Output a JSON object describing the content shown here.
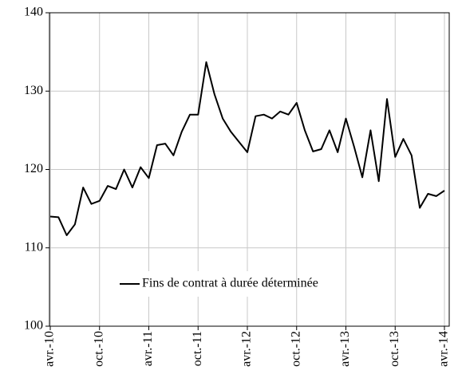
{
  "chart_data": {
    "type": "line",
    "categories": [
      "avr.-10",
      null,
      null,
      null,
      null,
      null,
      "oct.-10",
      null,
      null,
      null,
      null,
      null,
      "avr.-11",
      null,
      null,
      null,
      null,
      null,
      "oct.-11",
      null,
      null,
      null,
      null,
      null,
      "avr.-12",
      null,
      null,
      null,
      null,
      null,
      "oct.-12",
      null,
      null,
      null,
      null,
      null,
      "avr.-13",
      null,
      null,
      null,
      null,
      null,
      "oct.-13",
      null,
      null,
      null,
      null,
      null,
      "avr.-14"
    ],
    "series": [
      {
        "name": "Fins de contrat à durée déterminée",
        "color": "#000000",
        "values": [
          114.0,
          113.9,
          111.6,
          113.0,
          117.7,
          115.6,
          116.0,
          117.9,
          117.5,
          120.0,
          117.7,
          120.3,
          118.9,
          123.1,
          123.3,
          121.8,
          124.8,
          127.0,
          127.0,
          133.7,
          129.6,
          126.5,
          124.8,
          123.5,
          122.2,
          126.8,
          127.0,
          126.5,
          127.4,
          127.0,
          128.5,
          125.0,
          122.3,
          122.6,
          125.0,
          122.2,
          126.5,
          122.9,
          119.0,
          125.0,
          118.5,
          129.0,
          121.6,
          123.9,
          121.8,
          115.1,
          116.9,
          116.6,
          117.3
        ]
      }
    ],
    "ylim": [
      100,
      140
    ],
    "yticks": [
      100,
      110,
      120,
      130,
      140
    ],
    "grid": true,
    "legend": "bottom-center"
  }
}
